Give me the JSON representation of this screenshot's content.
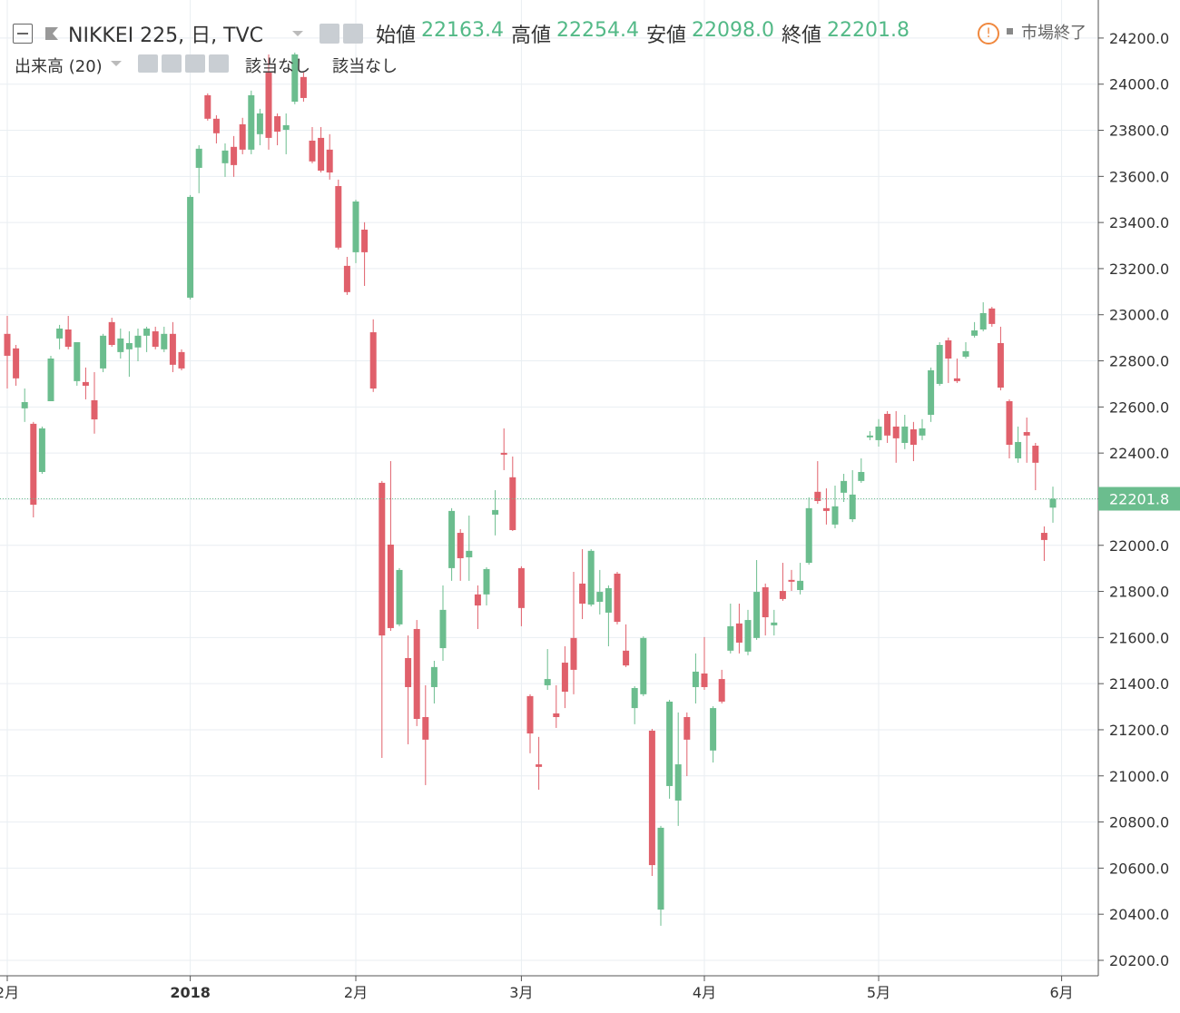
{
  "header": {
    "symbol": "NIKKEI 225, 日, TVC",
    "ohlc": [
      {
        "name": "始値",
        "value": "22163.4"
      },
      {
        "name": "高値",
        "value": "22254.4"
      },
      {
        "name": "安値",
        "value": "22098.0"
      },
      {
        "name": "終値",
        "value": "22201.8"
      }
    ],
    "volume": "出来高 (20)",
    "indicators": [
      "該当なし",
      "該当なし"
    ],
    "status": "市場終了"
  },
  "chart_data": {
    "type": "candlestick",
    "categories": [
      "2月",
      null,
      null,
      null,
      null,
      null,
      null,
      null,
      null,
      null,
      null,
      null,
      null,
      null,
      null,
      null,
      null,
      null,
      null,
      null,
      null,
      "2018",
      null,
      null,
      null,
      null,
      null,
      null,
      null,
      null,
      null,
      null,
      null,
      null,
      null,
      null,
      null,
      null,
      null,
      null,
      "2月",
      null,
      null,
      null,
      null,
      null,
      null,
      null,
      null,
      null,
      null,
      null,
      null,
      null,
      null,
      null,
      null,
      null,
      null,
      "3月",
      null,
      null,
      null,
      null,
      null,
      null,
      null,
      null,
      null,
      null,
      null,
      null,
      null,
      null,
      null,
      null,
      null,
      null,
      null,
      null,
      "4月",
      null,
      null,
      null,
      null,
      null,
      null,
      null,
      null,
      null,
      null,
      null,
      null,
      null,
      null,
      null,
      null,
      null,
      null,
      null,
      "5月",
      null,
      null,
      null,
      null,
      null,
      null,
      null,
      null,
      null,
      null,
      null,
      null,
      null,
      null,
      null,
      null,
      null,
      null,
      null,
      null,
      "6月"
    ],
    "open": [
      22917,
      22854,
      22594,
      22527,
      22318,
      22625,
      22897,
      22936,
      22712,
      22708,
      22629,
      22767,
      22968,
      22838,
      22850,
      22858,
      22909,
      22928,
      22850,
      22917,
      22838,
      23074,
      23637,
      23952,
      23850,
      23657,
      23728,
      23826,
      23716,
      23783,
      24050,
      23861,
      23802,
      23924,
      24031,
      23755,
      23767,
      23716,
      23558,
      23212,
      23271,
      23369,
      22924,
      22271,
      22003,
      21657,
      21511,
      21637,
      21255,
      21385,
      21554,
      21901,
      22054,
      21948,
      21787,
      21787,
      22133,
      22401,
      22295,
      21901,
      21346,
      21050,
      21393,
      21271,
      21491,
      21598,
      21834,
      21743,
      21755,
      21708,
      21877,
      21543,
      21294,
      21354,
      21196,
      20420,
      20956,
      20893,
      21255,
      21385,
      21444,
      21110,
      21420,
      21543,
      21661,
      21539,
      21598,
      21818,
      21653,
      21802,
      21850,
      21806,
      21924,
      22232,
      22161,
      22090,
      22228,
      22113,
      22279,
      22468,
      22456,
      22570,
      22515,
      22444,
      22503,
      22476,
      22566,
      22700,
      22889,
      22724,
      22818,
      22909,
      22936,
      23027,
      22877,
      22625,
      22377,
      22491,
      22432,
      22054,
      22163.4,
      null
    ],
    "high": [
      22995,
      22869,
      22680,
      22535,
      22515,
      22822,
      22956,
      22995,
      22881,
      22771,
      22751,
      22917,
      22987,
      22940,
      22928,
      22940,
      22948,
      22948,
      22948,
      22968,
      22850,
      23519,
      23735,
      23960,
      23865,
      23743,
      23775,
      23854,
      23972,
      23893,
      24129,
      23873,
      23873,
      24137,
      24050,
      23814,
      23814,
      23783,
      23586,
      23251,
      23499,
      23401,
      22980,
      22279,
      22365,
      21901,
      21609,
      21676,
      21393,
      21499,
      21826,
      22161,
      22070,
      22129,
      21826,
      21905,
      22239,
      22507,
      22385,
      21909,
      21354,
      21169,
      21550,
      21393,
      21562,
      21885,
      21983,
      21983,
      21893,
      21826,
      21885,
      21657,
      21389,
      21605,
      21204,
      20783,
      21330,
      21275,
      21275,
      21531,
      21602,
      21302,
      21460,
      21747,
      21747,
      21720,
      21936,
      21834,
      21720,
      21924,
      21893,
      21924,
      22208,
      22365,
      22247,
      22259,
      22310,
      22326,
      22377,
      22495,
      22547,
      22582,
      22582,
      22566,
      22535,
      22547,
      22771,
      22881,
      22901,
      22810,
      22881,
      22968,
      23054,
      23034,
      22948,
      22633,
      22515,
      22554,
      22444,
      22082,
      22254.4,
      null
    ],
    "low": [
      22680,
      22692,
      22535,
      22121,
      22310,
      22625,
      22850,
      22850,
      22692,
      22633,
      22484,
      22751,
      22861,
      22810,
      22731,
      22798,
      22838,
      22850,
      22838,
      22751,
      22759,
      23066,
      23527,
      23842,
      23743,
      23598,
      23598,
      23696,
      23696,
      23735,
      23716,
      23735,
      23696,
      23913,
      23924,
      23657,
      23617,
      23586,
      23283,
      23086,
      23224,
      23125,
      22665,
      21078,
      21629,
      21649,
      21137,
      21216,
      20960,
      21314,
      21499,
      21846,
      21846,
      21846,
      21637,
      21739,
      22043,
      22326,
      22062,
      21649,
      21098,
      20940,
      21373,
      21208,
      21294,
      21354,
      21680,
      21735,
      21700,
      21562,
      21657,
      21472,
      21224,
      21346,
      20566,
      20350,
      20901,
      20783,
      20999,
      21314,
      21373,
      21058,
      21314,
      21531,
      21531,
      21523,
      21590,
      21609,
      21609,
      21759,
      21802,
      21787,
      21916,
      22180,
      22090,
      22074,
      22188,
      22101,
      22271,
      22456,
      22428,
      22444,
      22358,
      22417,
      22365,
      22456,
      22535,
      22692,
      22704,
      22704,
      22810,
      22901,
      22928,
      22948,
      22672,
      22377,
      22358,
      22358,
      22239,
      21932,
      22098,
      null
    ],
    "close": [
      22822,
      22724,
      22621,
      22176,
      22507,
      22810,
      22940,
      22861,
      22881,
      22692,
      22546,
      22909,
      22869,
      22897,
      22877,
      22909,
      22940,
      22861,
      22917,
      22783,
      22767,
      23511,
      23720,
      23850,
      23787,
      23712,
      23649,
      23716,
      23952,
      23873,
      23767,
      23794,
      23822,
      24129,
      23940,
      23665,
      23625,
      23617,
      23291,
      23098,
      23491,
      23271,
      22680,
      21609,
      21641,
      21893,
      21385,
      21247,
      21157,
      21472,
      21720,
      22149,
      21944,
      21976,
      21739,
      21897,
      22153,
      22393,
      22066,
      21728,
      21184,
      21039,
      21420,
      21255,
      21365,
      21460,
      21747,
      21976,
      21798,
      21814,
      21668,
      21479,
      21381,
      21598,
      20613,
      20775,
      21322,
      21050,
      21157,
      21452,
      21385,
      21294,
      21322,
      21649,
      21578,
      21676,
      21798,
      21688,
      21665,
      21767,
      21842,
      21846,
      22161,
      22192,
      22149,
      22169,
      22279,
      22220,
      22318,
      22476,
      22515,
      22476,
      22464,
      22515,
      22436,
      22507,
      22759,
      22869,
      22810,
      22712,
      22842,
      22932,
      23007,
      22960,
      22684,
      22436,
      22448,
      22476,
      22358,
      22023,
      22201.8,
      null
    ],
    "up_color": "#6bbd8e",
    "down_color": "#e0606b",
    "ylim": [
      20133,
      24365
    ],
    "yticks": [
      {
        "value": 20200,
        "label": "20200.0"
      },
      {
        "value": 20400,
        "label": "20400.0"
      },
      {
        "value": 20600,
        "label": "20600.0"
      },
      {
        "value": 20800,
        "label": "20800.0"
      },
      {
        "value": 21000,
        "label": "21000.0"
      },
      {
        "value": 21200,
        "label": "21200.0"
      },
      {
        "value": 21400,
        "label": "21400.0"
      },
      {
        "value": 21600,
        "label": "21600.0"
      },
      {
        "value": 21800,
        "label": "21800.0"
      },
      {
        "value": 22000,
        "label": "22000.0"
      },
      {
        "value": 22200,
        "label": "22200.0"
      },
      {
        "value": 22400,
        "label": "22400.0"
      },
      {
        "value": 22600,
        "label": "22600.0"
      },
      {
        "value": 22800,
        "label": "22800.0"
      },
      {
        "value": 23000,
        "label": "23000.0"
      },
      {
        "value": 23200,
        "label": "23200.0"
      },
      {
        "value": 23400,
        "label": "23400.0"
      },
      {
        "value": 23600,
        "label": "23600.0"
      },
      {
        "value": 23800,
        "label": "23800.0"
      },
      {
        "value": 24000,
        "label": "24000.0"
      },
      {
        "value": 24200,
        "label": "24200.0"
      }
    ],
    "grid": true,
    "last_price_line": true
  }
}
